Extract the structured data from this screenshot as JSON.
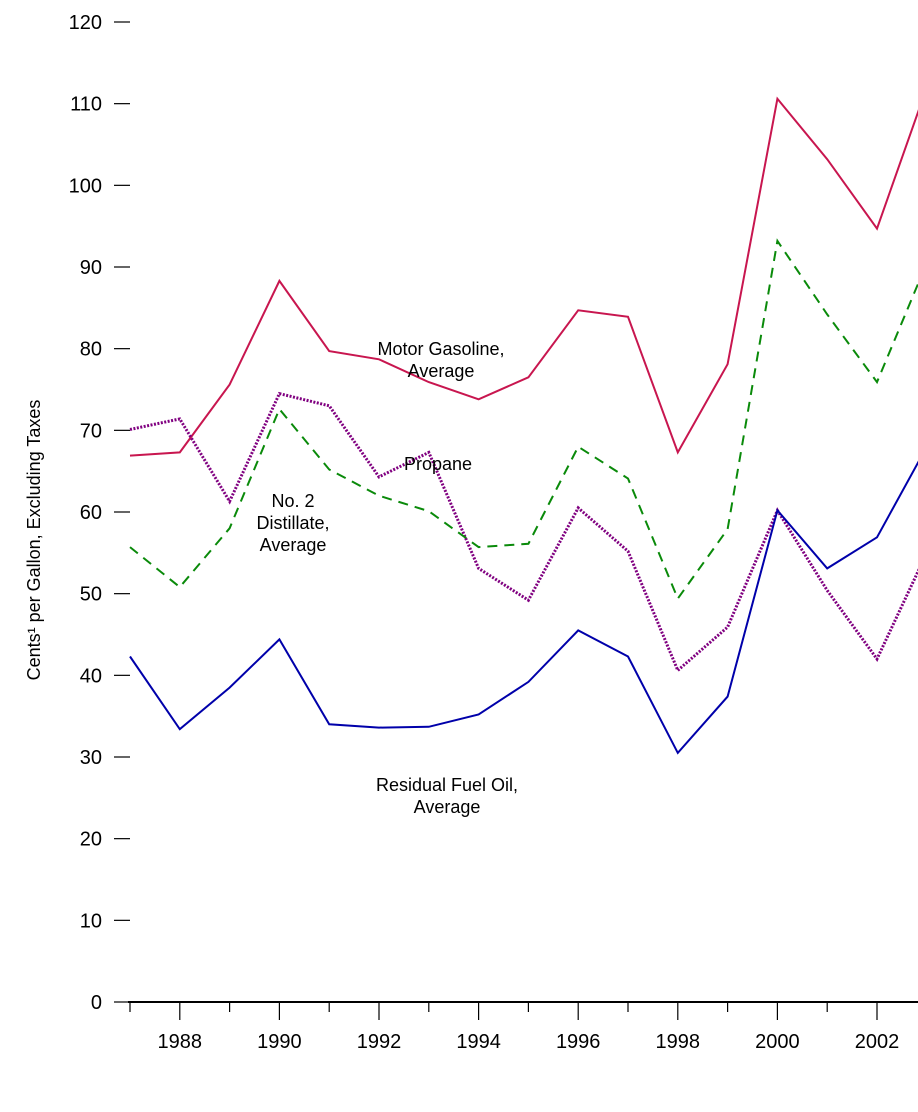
{
  "chart_data": {
    "type": "line",
    "title": "",
    "xlabel": "",
    "ylabel": "Cents¹ per Gallon, Excluding Taxes",
    "x": [
      1987,
      1988,
      1989,
      1990,
      1991,
      1992,
      1993,
      1994,
      1995,
      1996,
      1997,
      1998,
      1999,
      2000,
      2001,
      2002,
      2003
    ],
    "xtick_labels": [
      "1988",
      "1990",
      "1992",
      "1994",
      "1996",
      "1998",
      "2000",
      "2002"
    ],
    "ytick_labels": [
      "0",
      "10",
      "20",
      "30",
      "40",
      "50",
      "60",
      "70",
      "80",
      "90",
      "100",
      "110",
      "120"
    ],
    "ylim": [
      0,
      120
    ],
    "grid": false,
    "legend": "none",
    "series": [
      {
        "key": "motor_gasoline",
        "name_lines": [
          "Motor Gasoline,",
          "Average"
        ],
        "color": "#c8164f",
        "style": "solid",
        "values": [
          66.9,
          67.3,
          75.6,
          88.3,
          79.7,
          78.7,
          75.9,
          73.8,
          76.5,
          84.7,
          83.9,
          67.3,
          78.1,
          110.6,
          103.2,
          94.7,
          112.0
        ]
      },
      {
        "key": "propane",
        "name_lines": [
          "Propane"
        ],
        "color": "#800080",
        "style": "dotted",
        "values": [
          70.1,
          71.4,
          61.3,
          74.5,
          73.0,
          64.3,
          67.3,
          53.1,
          49.2,
          60.5,
          55.2,
          40.6,
          45.9,
          60.2,
          50.4,
          42.0,
          55.0
        ]
      },
      {
        "key": "no2_distillate",
        "name_lines": [
          "No. 2",
          "Distillate,",
          "Average"
        ],
        "color": "#0a8a0a",
        "style": "dashed",
        "values": [
          55.7,
          50.8,
          58.0,
          72.6,
          65.2,
          62.0,
          60.1,
          55.7,
          56.1,
          68.0,
          64.1,
          49.4,
          57.9,
          93.2,
          84.2,
          75.9,
          90.5
        ]
      },
      {
        "key": "residual_fuel_oil",
        "name_lines": [
          "Residual Fuel Oil,",
          "Average"
        ],
        "color": "#0000aa",
        "style": "solid",
        "values": [
          42.3,
          33.4,
          38.5,
          44.4,
          34.0,
          33.6,
          33.7,
          35.2,
          39.2,
          45.5,
          42.3,
          30.5,
          37.4,
          60.2,
          53.1,
          56.9,
          68.0
        ]
      }
    ]
  }
}
